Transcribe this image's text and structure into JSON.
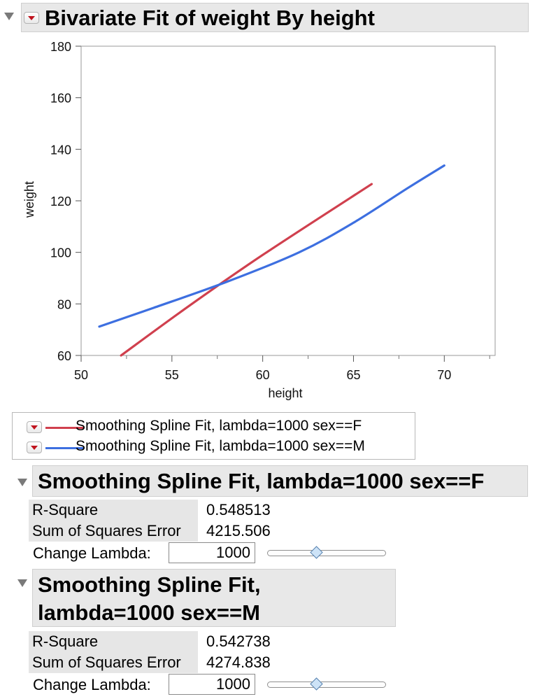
{
  "main": {
    "title": "Bivariate Fit of weight By height"
  },
  "chart_data": {
    "type": "line",
    "xlabel": "height",
    "ylabel": "weight",
    "xlim": [
      50,
      72
    ],
    "ylim": [
      60,
      180
    ],
    "x_ticks": [
      50,
      55,
      60,
      65,
      70
    ],
    "y_ticks": [
      60,
      80,
      100,
      120,
      140,
      160,
      180
    ],
    "grid": false,
    "legend_position": "below",
    "series": [
      {
        "name": "Smoothing Spline Fit, lambda=1000 sex==F",
        "color": "#d0404e",
        "points": [
          [
            52.2,
            60
          ],
          [
            56,
            79.5
          ],
          [
            60,
            99
          ],
          [
            66,
            126.5
          ]
        ]
      },
      {
        "name": "Smoothing Spline Fit, lambda=1000 sex==M",
        "color": "#3d6fe0",
        "points": [
          [
            51,
            71.2
          ],
          [
            54,
            78.5
          ],
          [
            58,
            88.5
          ],
          [
            62,
            100
          ],
          [
            65,
            111.5
          ],
          [
            68,
            125
          ],
          [
            70,
            133.7
          ]
        ]
      }
    ]
  },
  "legend": {
    "items": [
      {
        "label": "Smoothing Spline Fit, lambda=1000 sex==F",
        "color": "#d0404e"
      },
      {
        "label": "Smoothing Spline Fit, lambda=1000 sex==M",
        "color": "#3d6fe0"
      }
    ]
  },
  "fits": [
    {
      "title": "Smoothing Spline Fit, lambda=1000 sex==F",
      "r_square_label": "R-Square",
      "r_square": "0.548513",
      "sse_label": "Sum of Squares Error",
      "sse": "4215.506",
      "change_lambda_label": "Change Lambda:",
      "lambda": "1000",
      "slider_position": 0.42
    },
    {
      "title_line1": "Smoothing Spline Fit,",
      "title_line2": "lambda=1000 sex==M",
      "r_square_label": "R-Square",
      "r_square": "0.542738",
      "sse_label": "Sum of Squares Error",
      "sse": "4274.838",
      "change_lambda_label": "Change Lambda:",
      "lambda": "1000",
      "slider_position": 0.42
    }
  ]
}
